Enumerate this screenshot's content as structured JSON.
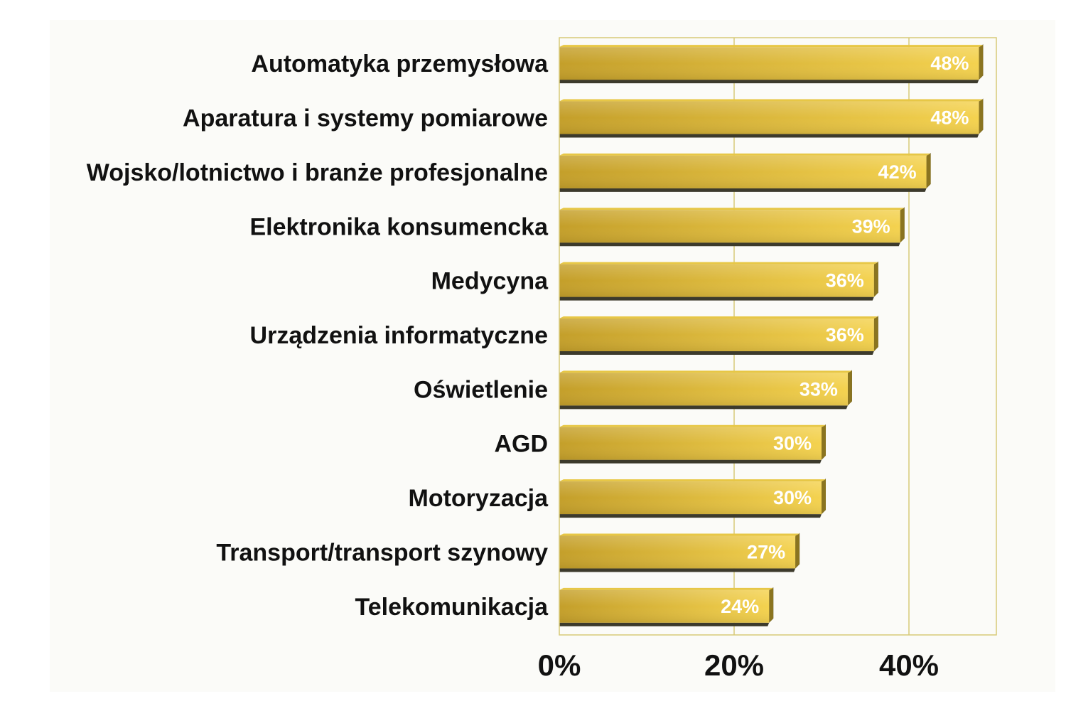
{
  "chart_data": {
    "type": "bar",
    "orientation": "horizontal",
    "categories": [
      "Automatyka przemysłowa",
      "Aparatura i systemy pomiarowe",
      "Wojsko/lotnictwo i branże profesjonalne",
      "Elektronika konsumencka",
      "Medycyna",
      "Urządzenia informatyczne",
      "Oświetlenie",
      "AGD",
      "Motoryzacja",
      "Transport/transport szynowy",
      "Telekomunikacja"
    ],
    "values": [
      48,
      48,
      42,
      39,
      36,
      36,
      33,
      30,
      30,
      27,
      24
    ],
    "data_labels": [
      "48%",
      "48%",
      "42%",
      "39%",
      "36%",
      "36%",
      "33%",
      "30%",
      "30%",
      "27%",
      "24%"
    ],
    "x_ticks": [
      "0%",
      "20%",
      "40%"
    ],
    "x_tick_values": [
      0,
      20,
      40
    ],
    "xlim": [
      0,
      50
    ],
    "grid": true,
    "legend": "none",
    "colors": {
      "bar_light": "#f4d24f",
      "bar_dark": "#bf9a24",
      "bar_shadow": "#4a4633",
      "plot_border": "#d8c978",
      "grid": "#d8c978",
      "background": "#fbfbf8"
    }
  }
}
